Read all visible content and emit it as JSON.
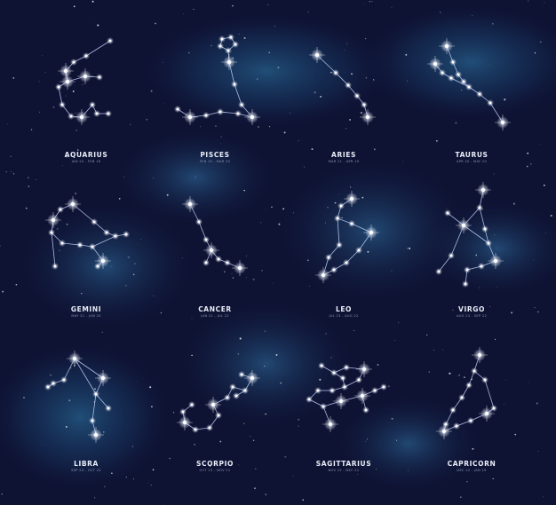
{
  "constellations": [
    {
      "name": "AQUARIUS",
      "dates": "JAN 20 - FEB 18"
    },
    {
      "name": "PISCES",
      "dates": "FEB 19 - MAR 20"
    },
    {
      "name": "ARIES",
      "dates": "MAR 21 - APR 19"
    },
    {
      "name": "TAURUS",
      "dates": "APR 20 - MAY 20"
    },
    {
      "name": "GEMINI",
      "dates": "MAY 21 - JUN 20"
    },
    {
      "name": "CANCER",
      "dates": "JUN 21 - JUL 22"
    },
    {
      "name": "LEO",
      "dates": "JUL 23 - AUG 22"
    },
    {
      "name": "VIRGO",
      "dates": "AUG 23 - SEP 22"
    },
    {
      "name": "LIBRA",
      "dates": "SEP 23 - OCT 22"
    },
    {
      "name": "SCORPIO",
      "dates": "OCT 23 - NOV 21"
    },
    {
      "name": "SAGITTARIUS",
      "dates": "NOV 22 - DEC 21"
    },
    {
      "name": "CAPRICORN",
      "dates": "DEC 22 - JAN 19"
    }
  ],
  "colors": {
    "sky": "#0e1233",
    "nebula": "#2a6a9a",
    "star": "#ffffff",
    "line": "#c9d6ff"
  }
}
